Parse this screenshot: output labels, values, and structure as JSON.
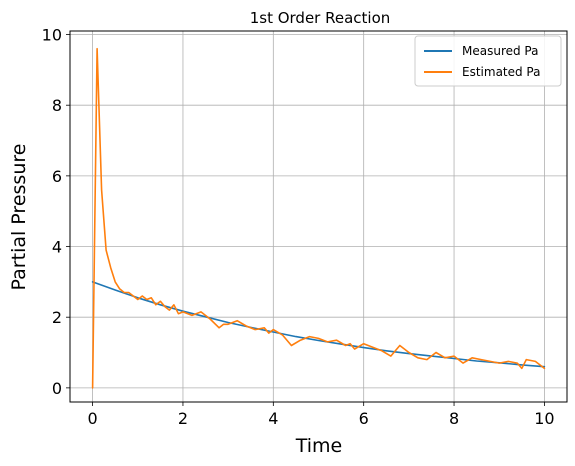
{
  "chart_data": {
    "type": "line",
    "title": "1st Order Reaction",
    "xlabel": "Time",
    "ylabel": "Partial Pressure",
    "xlim": [
      -0.5,
      10.5
    ],
    "ylim": [
      -0.4,
      10.1
    ],
    "grid": true,
    "legend_position": "top-right",
    "x_ticks": [
      0,
      2,
      4,
      6,
      8,
      10
    ],
    "y_ticks": [
      0,
      2,
      4,
      6,
      8,
      10
    ],
    "series": [
      {
        "name": "Measured Pa",
        "color": "#1f77b4",
        "x": [
          0,
          0.5,
          1,
          1.5,
          2,
          2.5,
          3,
          3.5,
          4,
          4.5,
          5,
          5.5,
          6,
          6.5,
          7,
          7.5,
          8,
          8.5,
          9,
          9.5,
          10
        ],
        "y": [
          3.0,
          2.77,
          2.55,
          2.35,
          2.17,
          2.01,
          1.85,
          1.71,
          1.58,
          1.45,
          1.34,
          1.24,
          1.14,
          1.05,
          0.97,
          0.9,
          0.83,
          0.76,
          0.71,
          0.65,
          0.6
        ]
      },
      {
        "name": "Estimated Pa",
        "color": "#ff7f0e",
        "x": [
          0,
          0.1,
          0.2,
          0.3,
          0.4,
          0.5,
          0.6,
          0.7,
          0.8,
          0.9,
          1.0,
          1.1,
          1.2,
          1.3,
          1.4,
          1.5,
          1.6,
          1.7,
          1.8,
          1.9,
          2.0,
          2.2,
          2.4,
          2.6,
          2.8,
          2.9,
          3.0,
          3.2,
          3.4,
          3.6,
          3.8,
          3.9,
          4.0,
          4.2,
          4.4,
          4.6,
          4.8,
          5.0,
          5.2,
          5.4,
          5.6,
          5.7,
          5.8,
          6.0,
          6.2,
          6.4,
          6.6,
          6.8,
          7.0,
          7.2,
          7.4,
          7.6,
          7.8,
          8.0,
          8.2,
          8.4,
          8.6,
          8.8,
          9.0,
          9.2,
          9.4,
          9.5,
          9.6,
          9.8,
          10.0
        ],
        "y": [
          0.0,
          9.6,
          5.6,
          3.9,
          3.4,
          3.0,
          2.8,
          2.7,
          2.7,
          2.6,
          2.5,
          2.6,
          2.5,
          2.55,
          2.35,
          2.45,
          2.3,
          2.2,
          2.35,
          2.1,
          2.15,
          2.05,
          2.15,
          1.95,
          1.7,
          1.8,
          1.8,
          1.9,
          1.75,
          1.65,
          1.7,
          1.55,
          1.65,
          1.5,
          1.2,
          1.35,
          1.45,
          1.4,
          1.3,
          1.35,
          1.2,
          1.25,
          1.1,
          1.25,
          1.15,
          1.05,
          0.9,
          1.2,
          1.0,
          0.85,
          0.8,
          1.0,
          0.85,
          0.9,
          0.7,
          0.85,
          0.8,
          0.75,
          0.7,
          0.75,
          0.7,
          0.55,
          0.8,
          0.75,
          0.55
        ]
      }
    ]
  }
}
